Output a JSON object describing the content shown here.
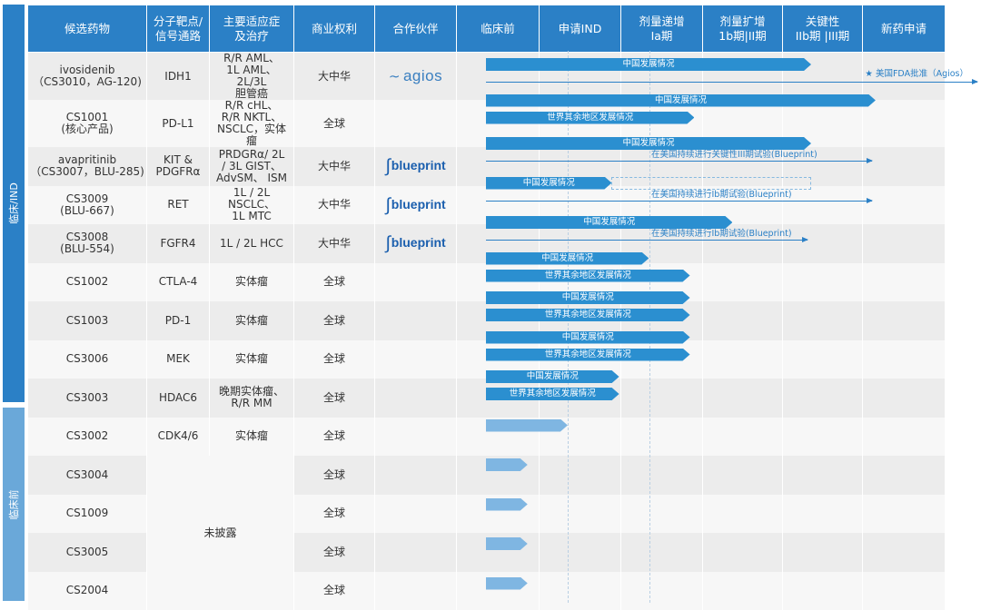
{
  "sidebar": {
    "clinical": "临床/IND",
    "preclinical": "临床前"
  },
  "headers": {
    "candidate": "候选药物",
    "target_l1": "分子靶点/",
    "target_l2": "信号通路",
    "indication_l1": "主要适应症",
    "indication_l2": "及治疗",
    "rights": "商业权利",
    "partner": "合作伙伴",
    "preclinical": "临床前",
    "ind": "申请IND",
    "ph1a_l1": "剂量递增",
    "ph1a_l2": "Ia期",
    "ph1b_l1": "剂量扩增",
    "ph1b_l2": "1b期|II期",
    "pivotal_l1": "关键性",
    "pivotal_l2": "IIb期 |III期",
    "nda": "新药申请"
  },
  "rows": [
    {
      "name": [
        "ivosidenib",
        "（CS3010，AG-120)"
      ],
      "target": [
        "IDH1"
      ],
      "indication": [
        "R/R AML、",
        "1L AML、 2L/3L",
        "胆管癌"
      ],
      "rights": "大中华",
      "partner": "agios"
    },
    {
      "name": [
        "CS1001",
        "(核心产品)"
      ],
      "target": [
        "PD-L1"
      ],
      "indication": [
        "R/R cHL、",
        "R/R NKTL、",
        "NSCLC，实体瘤"
      ],
      "rights": "全球",
      "partner": ""
    },
    {
      "name": [
        "avapritinib",
        "（CS3007，BLU-285)"
      ],
      "target": [
        "KIT & PDGFRα"
      ],
      "indication": [
        "PRDGRα/ 2L",
        "/ 3L GIST、",
        "AdvSM、 ISM"
      ],
      "rights": "大中华",
      "partner": "blueprint"
    },
    {
      "name": [
        "CS3009",
        "(BLU-667)"
      ],
      "target": [
        "RET"
      ],
      "indication": [
        "1L / 2L NSCLC、",
        "1L MTC"
      ],
      "rights": "大中华",
      "partner": "blueprint"
    },
    {
      "name": [
        "CS3008",
        "(BLU-554)"
      ],
      "target": [
        "FGFR4"
      ],
      "indication": [
        "1L / 2L HCC"
      ],
      "rights": "大中华",
      "partner": "blueprint"
    },
    {
      "name": [
        "CS1002"
      ],
      "target": [
        "CTLA-4"
      ],
      "indication": [
        "实体瘤"
      ],
      "rights": "全球",
      "partner": ""
    },
    {
      "name": [
        "CS1003"
      ],
      "target": [
        "PD-1"
      ],
      "indication": [
        "实体瘤"
      ],
      "rights": "全球",
      "partner": ""
    },
    {
      "name": [
        "CS3006"
      ],
      "target": [
        "MEK"
      ],
      "indication": [
        "实体瘤"
      ],
      "rights": "全球",
      "partner": ""
    },
    {
      "name": [
        "CS3003"
      ],
      "target": [
        "HDAC6"
      ],
      "indication": [
        "晚期实体瘤、",
        "R/R MM"
      ],
      "rights": "全球",
      "partner": ""
    },
    {
      "name": [
        "CS3002"
      ],
      "target": [
        "CDK4/6"
      ],
      "indication": [
        "实体瘤"
      ],
      "rights": "全球",
      "partner": ""
    },
    {
      "name": [
        "CS3004"
      ],
      "rights": "全球",
      "partner": ""
    },
    {
      "name": [
        "CS1009"
      ],
      "rights": "全球",
      "partner": ""
    },
    {
      "name": [
        "CS3005"
      ],
      "rights": "全球",
      "partner": ""
    },
    {
      "name": [
        "CS2004"
      ],
      "rights": "全球",
      "partner": ""
    }
  ],
  "undisclosed": "未披露",
  "progress": {
    "bars": [
      {
        "row": 0,
        "label": "中国发展情况",
        "start": 0.0,
        "end": 0.657
      },
      {
        "row": 1,
        "label": "中国发展情况",
        "start": 0.0,
        "end": 0.787
      },
      {
        "row": 1,
        "label": "世界其余地区发展情况",
        "start": 0.0,
        "end": 0.421
      },
      {
        "row": 2,
        "label": "中国发展情况",
        "start": 0.0,
        "end": 0.657
      },
      {
        "row": 3,
        "label": "中国发展情况",
        "start": 0.0,
        "end": 0.254
      },
      {
        "row": 3,
        "label": "",
        "start": 0.254,
        "end": 0.657,
        "style": "dashed"
      },
      {
        "row": 4,
        "label": "中国发展情况",
        "start": 0.0,
        "end": 0.498
      },
      {
        "row": 5,
        "label": "中国发展情况",
        "start": 0.0,
        "end": 0.329
      },
      {
        "row": 5,
        "label": "世界其余地区发展情况",
        "start": 0.0,
        "end": 0.412
      },
      {
        "row": 6,
        "label": "中国发展情况",
        "start": 0.0,
        "end": 0.412
      },
      {
        "row": 6,
        "label": "世界其余地区发展情况",
        "start": 0.0,
        "end": 0.412
      },
      {
        "row": 7,
        "label": "中国发展情况",
        "start": 0.0,
        "end": 0.412
      },
      {
        "row": 7,
        "label": "世界其余地区发展情况",
        "start": 0.0,
        "end": 0.412
      },
      {
        "row": 8,
        "label": "中国发展情况",
        "start": 0.0,
        "end": 0.269
      },
      {
        "row": 8,
        "label": "世界其余地区发展情况",
        "start": 0.0,
        "end": 0.269
      },
      {
        "row": 9,
        "label": "",
        "start": 0.0,
        "end": 0.165,
        "style": "light"
      },
      {
        "row": 10,
        "label": "",
        "start": 0.0,
        "end": 0.084,
        "style": "light"
      },
      {
        "row": 11,
        "label": "",
        "start": 0.0,
        "end": 0.084,
        "style": "light"
      },
      {
        "row": 12,
        "label": "",
        "start": 0.0,
        "end": 0.084,
        "style": "light"
      },
      {
        "row": 13,
        "label": "",
        "start": 0.0,
        "end": 0.084,
        "style": "light"
      }
    ],
    "arrows": [
      {
        "row": 0,
        "label": "★ 美国FDA批准（Agios）",
        "start": 0.0,
        "end": 1.0
      },
      {
        "row": 2,
        "label": "在美国持续进行关键性III期试验(Blueprint)",
        "start": 0.0,
        "end": 0.787
      },
      {
        "row": 3,
        "label": "在美国持续进行Ib期试验(Blueprint)",
        "start": 0.0,
        "end": 0.787
      },
      {
        "row": 4,
        "label": "在美国持续进行Ib期试验(Blueprint)",
        "start": 0.0,
        "end": 0.657
      }
    ]
  },
  "colors": {
    "header": "#2b80c6",
    "bar": "#2b8fd0",
    "bar_light": "#7fb6e2",
    "row_odd": "#ececec",
    "row_even": "#f7f7f7"
  }
}
